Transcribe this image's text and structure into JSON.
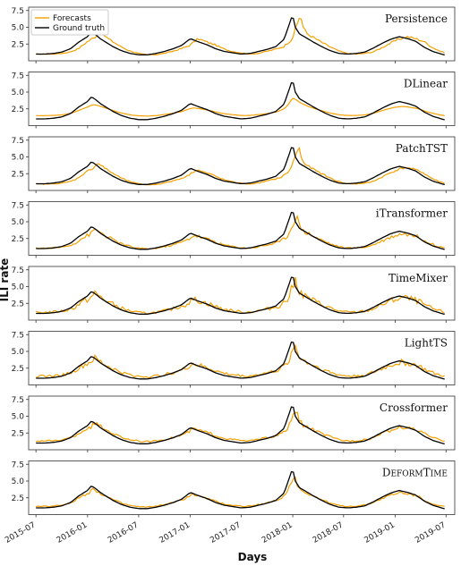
{
  "chart_data": {
    "type": "line",
    "xlabel": "Days",
    "ylabel": "ILI rate",
    "x_tick_labels": [
      "2015-07",
      "2016-01",
      "2016-07",
      "2017-01",
      "2017-07",
      "2018-01",
      "2018-07",
      "2019-01",
      "2019-07"
    ],
    "y_ticks": [
      2.5,
      5.0,
      7.5
    ],
    "ylim": [
      0,
      8
    ],
    "legend": {
      "placement": "top-left",
      "entries": [
        {
          "label": "Forecasts",
          "color": "#f5a000"
        },
        {
          "label": "Ground truth",
          "color": "#000000"
        }
      ]
    },
    "colors": {
      "forecast": "#f5a000",
      "truth": "#000000"
    },
    "ground_truth": {
      "name": "Ground truth",
      "points": [
        [
          "2015-07-01",
          1.0
        ],
        [
          "2015-08-01",
          1.0
        ],
        [
          "2015-09-01",
          1.1
        ],
        [
          "2015-10-01",
          1.3
        ],
        [
          "2015-11-01",
          1.8
        ],
        [
          "2015-12-01",
          2.8
        ],
        [
          "2016-01-01",
          3.6
        ],
        [
          "2016-01-15",
          4.3
        ],
        [
          "2016-02-01",
          3.8
        ],
        [
          "2016-02-15",
          3.3
        ],
        [
          "2016-03-01",
          2.9
        ],
        [
          "2016-04-01",
          2.1
        ],
        [
          "2016-05-01",
          1.5
        ],
        [
          "2016-06-01",
          1.1
        ],
        [
          "2016-07-01",
          0.9
        ],
        [
          "2016-08-01",
          0.9
        ],
        [
          "2016-09-01",
          1.1
        ],
        [
          "2016-10-01",
          1.4
        ],
        [
          "2016-11-01",
          1.8
        ],
        [
          "2016-12-01",
          2.3
        ],
        [
          "2017-01-01",
          3.3
        ],
        [
          "2017-02-01",
          2.8
        ],
        [
          "2017-03-01",
          2.4
        ],
        [
          "2017-04-01",
          1.8
        ],
        [
          "2017-05-01",
          1.4
        ],
        [
          "2017-06-01",
          1.2
        ],
        [
          "2017-07-01",
          1.0
        ],
        [
          "2017-08-01",
          1.1
        ],
        [
          "2017-09-01",
          1.4
        ],
        [
          "2017-10-01",
          1.7
        ],
        [
          "2017-11-01",
          2.1
        ],
        [
          "2017-12-01",
          3.2
        ],
        [
          "2017-12-20",
          5.5
        ],
        [
          "2017-12-31",
          6.9
        ],
        [
          "2018-01-10",
          5.0
        ],
        [
          "2018-01-25",
          4.0
        ],
        [
          "2018-02-15",
          3.5
        ],
        [
          "2018-03-15",
          2.8
        ],
        [
          "2018-04-15",
          2.1
        ],
        [
          "2018-05-15",
          1.5
        ],
        [
          "2018-06-15",
          1.1
        ],
        [
          "2018-07-15",
          1.0
        ],
        [
          "2018-08-15",
          1.1
        ],
        [
          "2018-09-15",
          1.3
        ],
        [
          "2018-10-15",
          1.9
        ],
        [
          "2018-11-15",
          2.6
        ],
        [
          "2018-12-15",
          3.2
        ],
        [
          "2019-01-15",
          3.6
        ],
        [
          "2019-02-15",
          3.3
        ],
        [
          "2019-03-15",
          2.9
        ],
        [
          "2019-04-15",
          2.0
        ],
        [
          "2019-05-15",
          1.4
        ],
        [
          "2019-06-15",
          1.0
        ],
        [
          "2019-07-01",
          0.8
        ]
      ]
    },
    "panels": [
      {
        "model": "Persistence",
        "shift_days": 28,
        "bias": 0.0,
        "jitter": 0.15,
        "scale": 1.0,
        "smooth": false
      },
      {
        "model": "DLinear",
        "shift_days": 0,
        "bias": 0.0,
        "jitter": 0.05,
        "scale": 0.55,
        "smooth": true
      },
      {
        "model": "PatchTST",
        "shift_days": 22,
        "bias": -0.1,
        "jitter": 0.15,
        "scale": 0.95,
        "smooth": false
      },
      {
        "model": "iTransformer",
        "shift_days": 14,
        "bias": -0.1,
        "jitter": 0.3,
        "scale": 0.85,
        "smooth": false
      },
      {
        "model": "TimeMixer",
        "shift_days": 12,
        "bias": 0.0,
        "jitter": 0.45,
        "scale": 0.85,
        "smooth": false
      },
      {
        "model": "LightTS",
        "shift_days": 10,
        "bias": 0.1,
        "jitter": 0.4,
        "scale": 0.8,
        "smooth": false
      },
      {
        "model": "Crossformer",
        "shift_days": 12,
        "bias": 0.1,
        "jitter": 0.25,
        "scale": 0.8,
        "smooth": false
      },
      {
        "model": "DeformTime",
        "shift_days": 6,
        "bias": 0.0,
        "jitter": 0.2,
        "scale": 0.8,
        "smooth": false
      }
    ]
  }
}
